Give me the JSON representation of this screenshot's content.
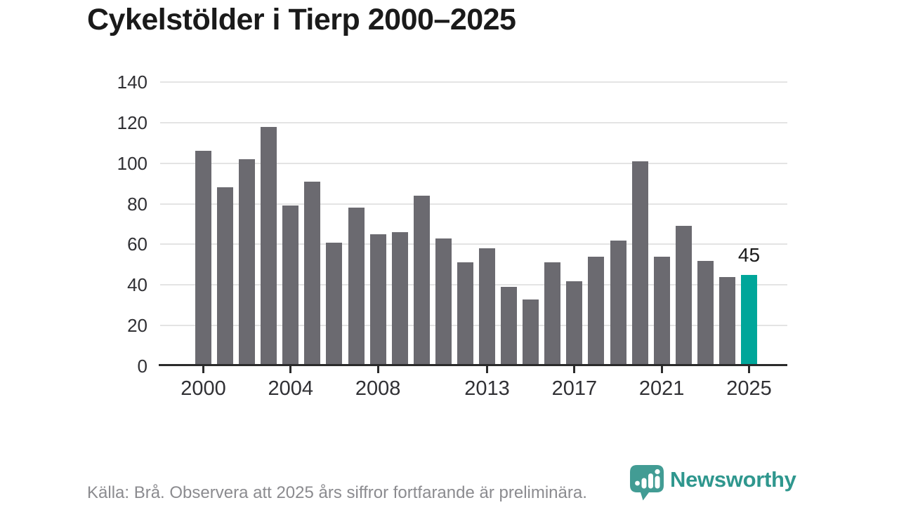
{
  "title": "Cykelstölder i Tierp 2000–2025",
  "footer": {
    "source_note": "Källa: Brå. Observera att 2025 års siffror fortfarande är preliminära."
  },
  "logo": {
    "name": "Newsworthy",
    "icon": "speech-bubble-bar-chart-icon"
  },
  "colors": {
    "bar": "#6b6a70",
    "highlight": "#00a69a",
    "grid": "#e4e4e4",
    "axis": "#2b2b2b",
    "tick_label": "#303034",
    "title": "#1a1a1a",
    "footer_text": "#8b8b8f",
    "logo_icon": "#429c94",
    "logo_text": "#2f978e",
    "annotation": "#1a1a1a"
  },
  "chart_data": {
    "type": "bar",
    "title": "Cykelstölder i Tierp 2000–2025",
    "x": [
      2000,
      2001,
      2002,
      2003,
      2004,
      2005,
      2006,
      2007,
      2008,
      2009,
      2010,
      2011,
      2012,
      2013,
      2014,
      2015,
      2016,
      2017,
      2018,
      2019,
      2020,
      2021,
      2022,
      2023,
      2024,
      2025
    ],
    "values": [
      106,
      88,
      102,
      118,
      79,
      91,
      61,
      78,
      65,
      66,
      84,
      63,
      51,
      58,
      39,
      33,
      51,
      42,
      54,
      62,
      101,
      54,
      69,
      52,
      44,
      45
    ],
    "ylim": [
      0,
      140
    ],
    "y_ticks": [
      0,
      20,
      40,
      60,
      80,
      100,
      120,
      140
    ],
    "x_tick_labels": [
      2000,
      2004,
      2008,
      2013,
      2017,
      2021,
      2025
    ],
    "grid": "horizontal",
    "legend": "none",
    "highlight": {
      "year": 2025,
      "value": 45,
      "label": "45"
    }
  }
}
